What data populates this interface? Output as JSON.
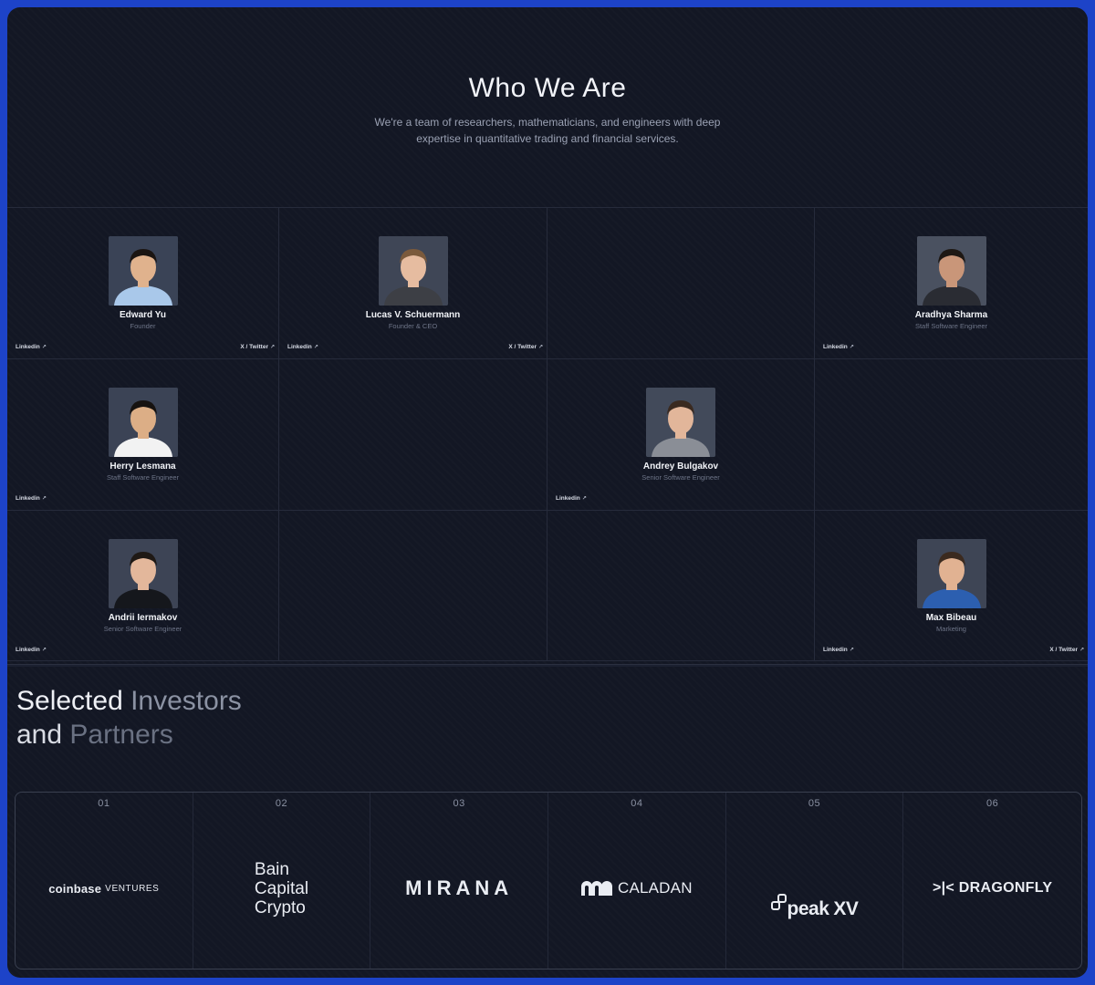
{
  "hero": {
    "title": "Who We Are",
    "subtitle": "We're a team of researchers, mathematicians, and engineers with deep expertise in quantitative trading and financial services."
  },
  "team": [
    {
      "name": "Edward Yu",
      "role": "Founder",
      "linkedin": "Linkedin",
      "twitter": "X / Twitter",
      "skin": "#e0b28d",
      "hair": "#1b1512",
      "shirt": "#a9c8ea",
      "bg": "#3a4356"
    },
    {
      "name": "Lucas V. Schuermann",
      "role": "Founder & CEO",
      "linkedin": "Linkedin",
      "twitter": "X / Twitter",
      "skin": "#e6bca0",
      "hair": "#7b5a3c",
      "shirt": "#3d3f45",
      "bg": "#3f4656"
    },
    {
      "name": "Aradhya Sharma",
      "role": "Staff Software Engineer",
      "linkedin": "Linkedin",
      "skin": "#c99679",
      "hair": "#1e1814",
      "shirt": "#2a2c33",
      "bg": "#4a5160"
    },
    {
      "name": "Herry Lesmana",
      "role": "Staff Software Engineer",
      "linkedin": "Linkedin",
      "skin": "#dcae86",
      "hair": "#161210",
      "shirt": "#f2f2f2",
      "bg": "#3b4355"
    },
    {
      "name": "Andrey Bulgakov",
      "role": "Senior Software Engineer",
      "linkedin": "Linkedin",
      "skin": "#e2b69a",
      "hair": "#3a2a20",
      "shirt": "#8a8e96",
      "bg": "#424a5a"
    },
    {
      "name": "Andrii Iermakov",
      "role": "Senior Software Engineer",
      "linkedin": "Linkedin",
      "skin": "#e3b79b",
      "hair": "#1f1915",
      "shirt": "#15171c",
      "bg": "#3d4455"
    },
    {
      "name": "Max Bibeau",
      "role": "Marketing",
      "linkedin": "Linkedin",
      "twitter": "X / Twitter",
      "skin": "#e1b292",
      "hair": "#3b2a1f",
      "shirt": "#2c5fb0",
      "bg": "#3e4555"
    }
  ],
  "investors": {
    "title_line1_a": "Selected",
    "title_line1_b": "Investors",
    "title_line2_a": "and",
    "title_line2_b": "Partners",
    "partners": [
      {
        "num": "01",
        "name": "coinbase",
        "suffix": "VENTURES"
      },
      {
        "num": "02",
        "line1": "Bain",
        "line2": "Capital",
        "line3": "Crypto"
      },
      {
        "num": "03",
        "name": "MIRANA"
      },
      {
        "num": "04",
        "name": "CALADAN"
      },
      {
        "num": "05",
        "name": "peak",
        "suffix": "XV"
      },
      {
        "num": "06",
        "name": ">|< DRAGONFLY"
      }
    ]
  }
}
